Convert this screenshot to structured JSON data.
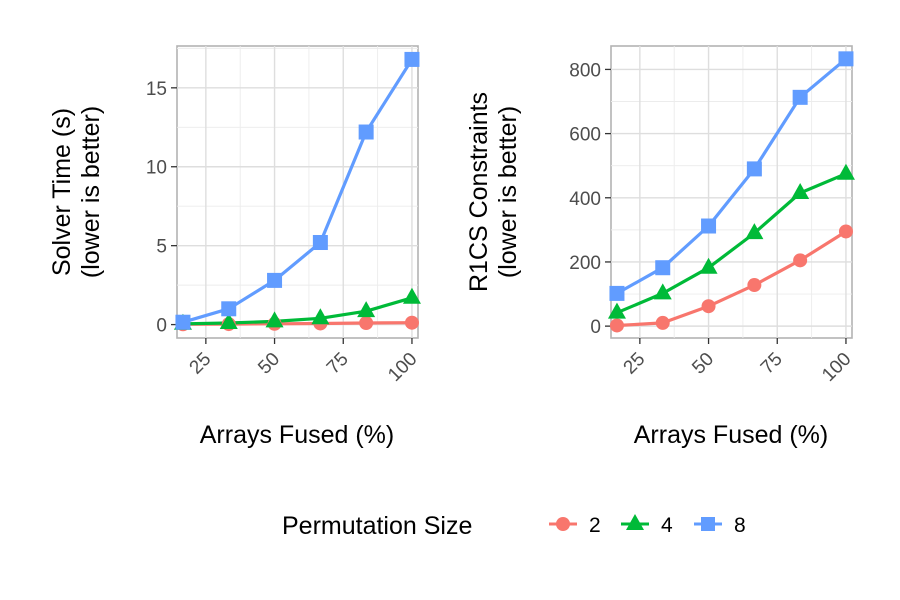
{
  "chart_data": [
    {
      "type": "line",
      "panel": "left",
      "ylabel_lines": [
        "Solver Time (s)",
        "(lower is better)"
      ],
      "xlabel": "Arrays Fused (%)",
      "x": [
        16.67,
        33.33,
        50,
        66.67,
        83.33,
        100
      ],
      "xlim": [
        14.5,
        102.2
      ],
      "ylim": [
        -0.85,
        17.65
      ],
      "xticks": [
        25,
        50,
        75,
        100
      ],
      "yticks": [
        0,
        5,
        10,
        15
      ],
      "xtick_labels": [
        "25",
        "50",
        "75",
        "100"
      ],
      "ytick_labels": [
        "0",
        "5",
        "10",
        "15"
      ],
      "grid": true,
      "series": [
        {
          "name": "2",
          "values": [
            0.02,
            0.03,
            0.05,
            0.07,
            0.1,
            0.12
          ]
        },
        {
          "name": "4",
          "values": [
            0.05,
            0.1,
            0.2,
            0.4,
            0.85,
            1.7
          ]
        },
        {
          "name": "8",
          "values": [
            0.15,
            1.0,
            2.8,
            5.2,
            12.2,
            16.8
          ]
        }
      ]
    },
    {
      "type": "line",
      "panel": "right",
      "ylabel_lines": [
        "R1CS Constraints",
        "(lower is better)"
      ],
      "xlabel": "Arrays Fused (%)",
      "x": [
        16.67,
        33.33,
        50,
        66.67,
        83.33,
        100
      ],
      "xlim": [
        14.5,
        102.2
      ],
      "ylim": [
        -37,
        873
      ],
      "xticks": [
        25,
        50,
        75,
        100
      ],
      "yticks": [
        0,
        200,
        400,
        600,
        800
      ],
      "xtick_labels": [
        "25",
        "50",
        "75",
        "100"
      ],
      "ytick_labels": [
        "0",
        "200",
        "400",
        "600",
        "800"
      ],
      "grid": true,
      "series": [
        {
          "name": "2",
          "values": [
            2,
            10,
            62,
            128,
            205,
            295
          ]
        },
        {
          "name": "4",
          "values": [
            42,
            102,
            182,
            290,
            415,
            475
          ]
        },
        {
          "name": "8",
          "values": [
            102,
            182,
            312,
            490,
            713,
            833
          ]
        }
      ]
    }
  ],
  "legend": {
    "title": "Permutation Size",
    "placement": "bottom",
    "items": [
      {
        "label": "2",
        "color": "#F8766D",
        "shape": "circle-icon"
      },
      {
        "label": "4",
        "color": "#00BA38",
        "shape": "triangle-icon"
      },
      {
        "label": "8",
        "color": "#619CFF",
        "shape": "square-icon"
      }
    ]
  },
  "colors": {
    "2": "#F8766D",
    "4": "#00BA38",
    "8": "#619CFF"
  }
}
